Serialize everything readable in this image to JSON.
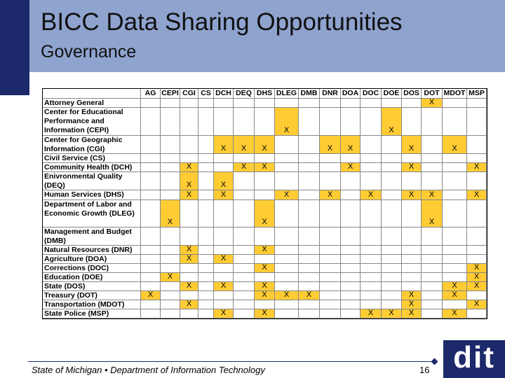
{
  "header": {
    "title": "BICC Data Sharing Opportunities",
    "subtitle": "Governance"
  },
  "table": {
    "columns": [
      "AG",
      "CEPI",
      "CGI",
      "CS",
      "DCH",
      "DEQ",
      "DHS",
      "DLEG",
      "DMB",
      "DNR",
      "DOA",
      "DOC",
      "DOE",
      "DOS",
      "DOT",
      "MDOT",
      "MSP"
    ],
    "rows": [
      {
        "label": [
          "Attorney General"
        ],
        "cells": [
          null,
          null,
          null,
          null,
          null,
          null,
          null,
          null,
          null,
          null,
          null,
          null,
          null,
          null,
          "X",
          null,
          null
        ]
      },
      {
        "label": [
          "Center for Educational",
          "Performance and",
          "Information (CEPI)"
        ],
        "cells": [
          null,
          null,
          null,
          null,
          null,
          null,
          null,
          "X",
          null,
          null,
          null,
          null,
          "X",
          null,
          null,
          null,
          null
        ]
      },
      {
        "label": [
          "Center for Geographic",
          "Information (CGI)"
        ],
        "cells": [
          null,
          null,
          null,
          null,
          "X",
          "X",
          "X",
          null,
          null,
          "X",
          "X",
          null,
          null,
          "X",
          null,
          "X",
          null
        ]
      },
      {
        "label": [
          "Civil Service (CS)"
        ],
        "cells": [
          null,
          null,
          null,
          null,
          null,
          null,
          null,
          null,
          null,
          null,
          null,
          null,
          null,
          null,
          null,
          null,
          null
        ]
      },
      {
        "label": [
          "Community Health (DCH)"
        ],
        "cells": [
          null,
          null,
          "X",
          null,
          null,
          "X",
          "X",
          null,
          null,
          null,
          "X",
          null,
          null,
          "X",
          null,
          null,
          "X"
        ]
      },
      {
        "label": [
          "Enivronmental Quality",
          "(DEQ)"
        ],
        "cells": [
          null,
          null,
          "X",
          null,
          "X",
          null,
          null,
          null,
          null,
          null,
          null,
          null,
          null,
          null,
          null,
          null,
          null
        ]
      },
      {
        "label": [
          "Human Services (DHS)"
        ],
        "cells": [
          null,
          null,
          "X",
          null,
          "X",
          null,
          null,
          "X",
          null,
          "X",
          null,
          "X",
          null,
          "X",
          "X",
          null,
          "X"
        ]
      },
      {
        "label": [
          "Department of Labor and",
          "Economic Growth (DLEG)"
        ],
        "cells": [
          null,
          "X",
          null,
          null,
          null,
          null,
          "X",
          null,
          null,
          null,
          null,
          null,
          null,
          null,
          "X",
          null,
          null
        ]
      },
      {
        "label": [
          "Management and Budget",
          "(DMB)"
        ],
        "cells": [
          null,
          null,
          null,
          null,
          null,
          null,
          null,
          null,
          null,
          null,
          null,
          null,
          null,
          null,
          null,
          null,
          null
        ]
      },
      {
        "label": [
          "Natural Resources (DNR)"
        ],
        "cells": [
          null,
          null,
          "X",
          null,
          null,
          null,
          "X",
          null,
          null,
          null,
          null,
          null,
          null,
          null,
          null,
          null,
          null
        ]
      },
      {
        "label": [
          "Agriculture (DOA)"
        ],
        "cells": [
          null,
          null,
          "X",
          null,
          "X",
          null,
          null,
          null,
          null,
          null,
          null,
          null,
          null,
          null,
          null,
          null,
          null
        ]
      },
      {
        "label": [
          "Corrections (DOC)"
        ],
        "cells": [
          null,
          null,
          null,
          null,
          null,
          null,
          "X",
          null,
          null,
          null,
          null,
          null,
          null,
          null,
          null,
          null,
          "X"
        ]
      },
      {
        "label": [
          "Education (DOE)"
        ],
        "cells": [
          null,
          "X",
          null,
          null,
          null,
          null,
          null,
          null,
          null,
          null,
          null,
          null,
          null,
          null,
          null,
          null,
          "X"
        ]
      },
      {
        "label": [
          "State (DOS)"
        ],
        "cells": [
          null,
          null,
          "X",
          null,
          "X",
          null,
          "X",
          null,
          null,
          null,
          null,
          null,
          null,
          null,
          null,
          "X",
          "X"
        ]
      },
      {
        "label": [
          "Treasury (DOT)"
        ],
        "cells": [
          "X",
          null,
          null,
          null,
          null,
          null,
          "X",
          "X",
          "X",
          null,
          null,
          null,
          null,
          "X",
          null,
          "X",
          null
        ]
      },
      {
        "label": [
          "Transportation (MDOT)"
        ],
        "cells": [
          null,
          null,
          "X",
          null,
          null,
          null,
          null,
          null,
          null,
          null,
          null,
          null,
          null,
          "X",
          null,
          null,
          "X"
        ]
      },
      {
        "label": [
          "State Police (MSP)"
        ],
        "cells": [
          null,
          null,
          null,
          null,
          "X",
          null,
          "X",
          null,
          null,
          null,
          null,
          "X",
          "X",
          "X",
          null,
          "X",
          null
        ]
      }
    ]
  },
  "footer": {
    "text": "State of Michigan • Department of Information Technology",
    "page": "16",
    "logo": "dit"
  }
}
